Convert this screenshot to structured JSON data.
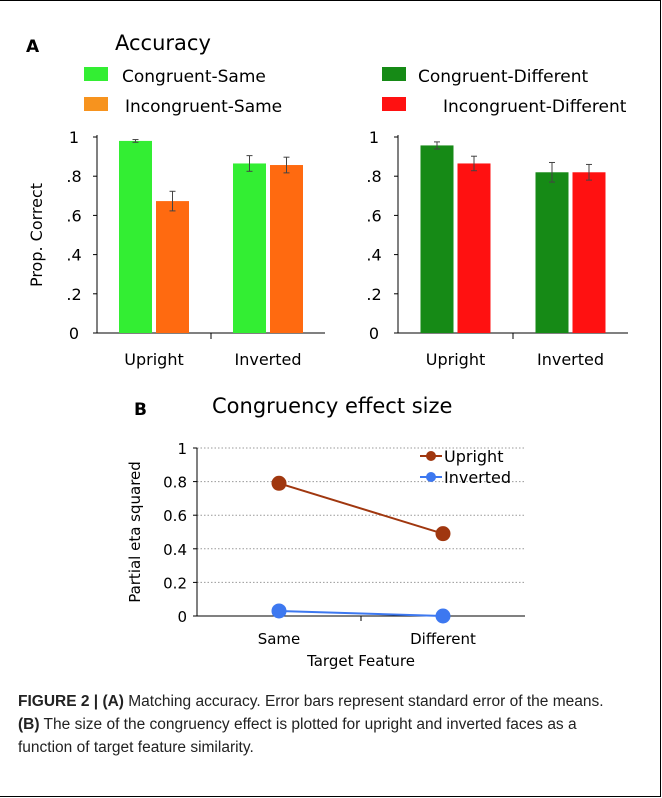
{
  "panel_a": {
    "label": "A",
    "title": "Accuracy",
    "legend": [
      {
        "label": "Congruent-Same",
        "color": "#33ee33"
      },
      {
        "label": "Incongruent-Same",
        "color": "#f7931e"
      },
      {
        "label": "Congruent-Different",
        "color": "#168a16"
      },
      {
        "label": "Incongruent-Different",
        "color": "#ff1111"
      }
    ]
  },
  "panel_b": {
    "label": "B",
    "title": "Congruency effect size"
  },
  "caption": {
    "fig_label": "FIGURE 2 | ",
    "a_ref": "(A)",
    "text1": " Matching accuracy. Error bars represent standard error of the means. ",
    "b_ref": "(B)",
    "text2": " The size of the congruency effect is plotted for upright and inverted faces as a function of target feature similarity."
  },
  "chart_data": [
    {
      "type": "bar",
      "ylabel": "Prop. Correct",
      "ylim": [
        0,
        1
      ],
      "yticks": [
        "0",
        ".2",
        ".4",
        ".6",
        ".8",
        "1"
      ],
      "categories": [
        "Upright",
        "Inverted"
      ],
      "series": [
        {
          "name": "Congruent-Same",
          "color": "#33ee33",
          "values": [
            0.98,
            0.865
          ],
          "errors": [
            0.007,
            0.04
          ]
        },
        {
          "name": "Incongruent-Same",
          "color": "#ff6a10",
          "values": [
            0.673,
            0.857
          ],
          "errors": [
            0.05,
            0.04
          ]
        }
      ]
    },
    {
      "type": "bar",
      "ylim": [
        0,
        1
      ],
      "yticks": [
        "0",
        ".2",
        ".4",
        ".6",
        ".8",
        "1"
      ],
      "categories": [
        "Upright",
        "Inverted"
      ],
      "series": [
        {
          "name": "Congruent-Different",
          "color": "#168a16",
          "values": [
            0.957,
            0.82
          ],
          "errors": [
            0.018,
            0.05
          ]
        },
        {
          "name": "Incongruent-Different",
          "color": "#ff1111",
          "values": [
            0.865,
            0.82
          ],
          "errors": [
            0.037,
            0.04
          ]
        }
      ]
    },
    {
      "type": "line",
      "xlabel": "Target Feature",
      "ylabel": "Partial eta squared",
      "ylim": [
        0,
        1
      ],
      "yticks": [
        "0",
        "0.2",
        "0.4",
        "0.6",
        "0.8",
        "1"
      ],
      "grid": true,
      "legend_position": "top-right",
      "x": [
        "Same",
        "Different"
      ],
      "series": [
        {
          "name": "Upright",
          "color": "#a0370f",
          "values": [
            0.79,
            0.49
          ]
        },
        {
          "name": "Inverted",
          "color": "#3d78f0",
          "values": [
            0.03,
            0.0
          ]
        }
      ]
    }
  ]
}
